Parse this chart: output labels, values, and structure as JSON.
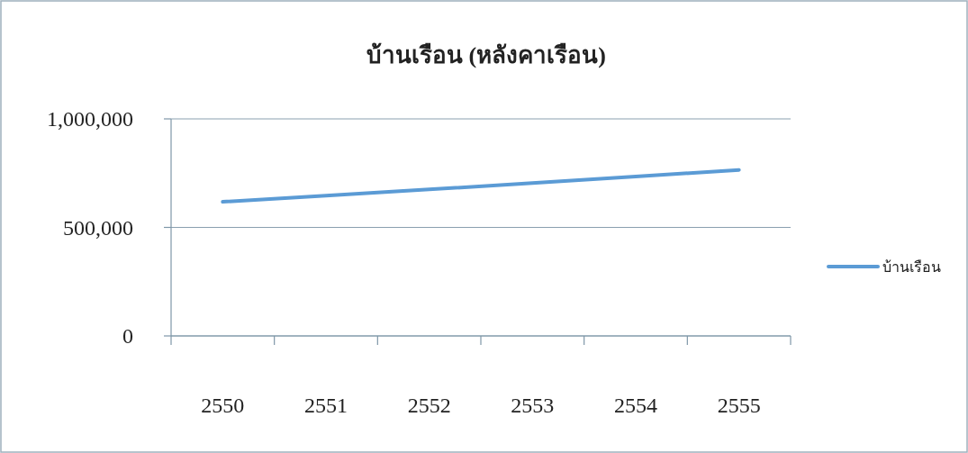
{
  "chart_data": {
    "type": "line",
    "title": "บ้านเรือน (หลังคาเรือน)",
    "categories": [
      "2550",
      "2551",
      "2552",
      "2553",
      "2554",
      "2555"
    ],
    "series": [
      {
        "name": "บ้านเรือน",
        "color": "#5b9bd5",
        "values": [
          618000,
          646000,
          675000,
          704000,
          734000,
          765000
        ]
      }
    ],
    "ylim": [
      0,
      1000000
    ],
    "yticks": [
      {
        "value": 0,
        "label": "0"
      },
      {
        "value": 500000,
        "label": "500,000"
      },
      {
        "value": 1000000,
        "label": "1,000,000"
      }
    ],
    "grid": "y",
    "legend": "right",
    "marker": "none"
  }
}
